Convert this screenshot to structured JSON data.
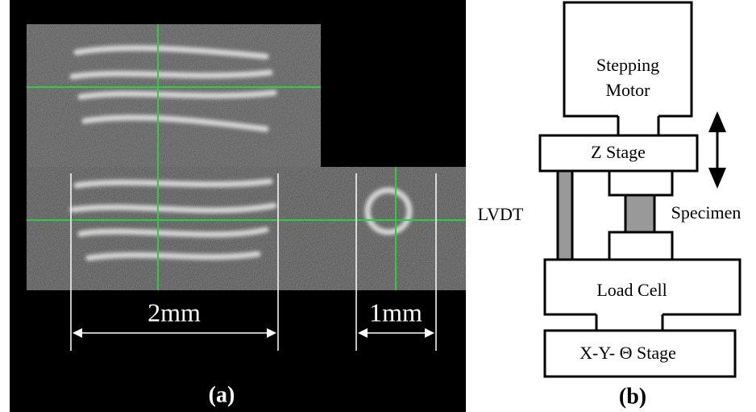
{
  "panel_a": {
    "scale_bars": [
      "2mm",
      "1mm"
    ],
    "label": "(a)"
  },
  "panel_b": {
    "nodes": [
      "Stepping",
      "Motor",
      "Z Stage",
      "LVDT",
      "Specimen",
      "Load Cell",
      "X-Y- Θ Stage"
    ],
    "label": "(b)"
  }
}
